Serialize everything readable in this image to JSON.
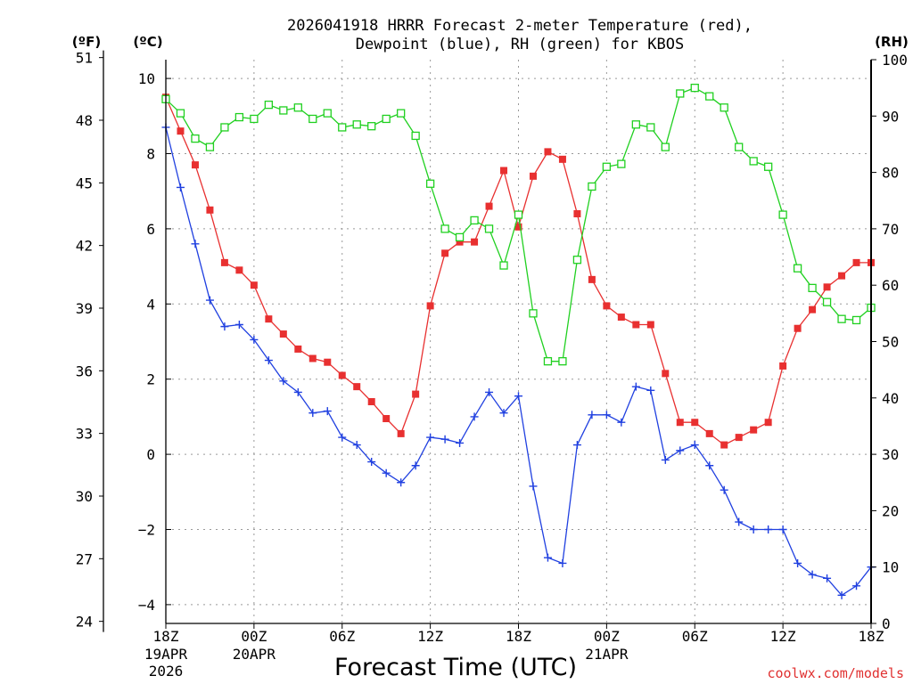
{
  "chart_data": {
    "type": "line",
    "title_line1": "2026041918 HRRR Forecast 2-meter Temperature (red),",
    "title_line2": "Dewpoint (blue), RH (green) for KBOS",
    "unit_f": "(ºF)",
    "unit_c": "(ºC)",
    "unit_rh": "(RH)",
    "xlabel": "Forecast Time (UTC)",
    "credit": "coolwx.com/models",
    "colors": {
      "temperature": "#e83030",
      "dewpoint": "#2040e0",
      "rh": "#20d020",
      "axis": "#000000",
      "grid": "#999999",
      "credit": "#e03030"
    },
    "x_axis": {
      "min_hour": 0,
      "max_hour": 48,
      "unit": "forecast hour"
    },
    "y_axis_c": {
      "min": -4.5,
      "max": 10.5,
      "ticks": [
        "10",
        "8",
        "6",
        "4",
        "2",
        "0",
        "−2",
        "−4"
      ],
      "tick_values": [
        10,
        8,
        6,
        4,
        2,
        0,
        -2,
        -4
      ]
    },
    "y_axis_f": {
      "ticks": [
        "51",
        "48",
        "45",
        "42",
        "39",
        "36",
        "33",
        "30",
        "27",
        "24"
      ],
      "tick_values": [
        51,
        48,
        45,
        42,
        39,
        36,
        33,
        30,
        27,
        24
      ]
    },
    "y_axis_rh": {
      "min": 0,
      "max": 100,
      "ticks": [
        "100",
        "90",
        "80",
        "70",
        "60",
        "50",
        "40",
        "30",
        "20",
        "10",
        "0"
      ],
      "tick_values": [
        100,
        90,
        80,
        70,
        60,
        50,
        40,
        30,
        20,
        10,
        0
      ]
    },
    "x_ticks": [
      {
        "hour": 0,
        "label": "18Z",
        "sub1": "19APR",
        "sub2": "2026"
      },
      {
        "hour": 6,
        "label": "00Z",
        "sub1": "20APR",
        "sub2": ""
      },
      {
        "hour": 12,
        "label": "06Z",
        "sub1": "",
        "sub2": ""
      },
      {
        "hour": 18,
        "label": "12Z",
        "sub1": "",
        "sub2": ""
      },
      {
        "hour": 24,
        "label": "18Z",
        "sub1": "",
        "sub2": ""
      },
      {
        "hour": 30,
        "label": "00Z",
        "sub1": "21APR",
        "sub2": ""
      },
      {
        "hour": 36,
        "label": "06Z",
        "sub1": "",
        "sub2": ""
      },
      {
        "hour": 42,
        "label": "12Z",
        "sub1": "",
        "sub2": ""
      },
      {
        "hour": 48,
        "label": "18Z",
        "sub1": "",
        "sub2": ""
      }
    ],
    "hours": [
      0,
      1,
      2,
      3,
      4,
      5,
      6,
      7,
      8,
      9,
      10,
      11,
      12,
      13,
      14,
      15,
      16,
      17,
      18,
      19,
      20,
      21,
      22,
      23,
      24,
      25,
      26,
      27,
      28,
      29,
      30,
      31,
      32,
      33,
      34,
      35,
      36,
      37,
      38,
      39,
      40,
      41,
      42,
      43,
      44,
      45,
      46,
      47,
      48
    ],
    "series": [
      {
        "name": "Temperature (C)",
        "key": "temperature",
        "axis": "c",
        "marker": "filled-square",
        "values": [
          9.5,
          8.6,
          7.7,
          6.5,
          5.1,
          4.9,
          4.5,
          3.6,
          3.2,
          2.8,
          2.55,
          2.45,
          2.1,
          1.8,
          1.4,
          0.95,
          0.55,
          1.6,
          3.95,
          5.35,
          5.65,
          5.65,
          6.6,
          7.55,
          6.05,
          7.4,
          8.05,
          7.85,
          6.4,
          4.65,
          3.95,
          3.65,
          3.45,
          3.45,
          2.15,
          0.85,
          0.85,
          0.55,
          0.25,
          0.45,
          0.65,
          0.85,
          2.35,
          3.35,
          3.85,
          4.45,
          4.75,
          5.1,
          5.1
        ]
      },
      {
        "name": "Dewpoint (C)",
        "key": "dewpoint",
        "axis": "c",
        "marker": "plus",
        "values": [
          8.7,
          7.1,
          5.6,
          4.1,
          3.4,
          3.45,
          3.05,
          2.5,
          1.95,
          1.65,
          1.1,
          1.15,
          0.45,
          0.25,
          -0.2,
          -0.5,
          -0.75,
          -0.3,
          0.45,
          0.4,
          0.3,
          1.0,
          1.65,
          1.1,
          1.55,
          -0.85,
          -2.75,
          -2.9,
          0.25,
          1.05,
          1.05,
          0.85,
          1.8,
          1.7,
          -0.15,
          0.1,
          0.25,
          -0.3,
          -0.95,
          -1.8,
          -2.0,
          -2.0,
          -2.0,
          -2.9,
          -3.2,
          -3.3,
          -3.75,
          -3.5,
          -3.0
        ]
      },
      {
        "name": "RH (%)",
        "key": "rh",
        "axis": "rh",
        "marker": "open-square",
        "values": [
          93,
          90.5,
          86,
          84.5,
          88,
          89.8,
          89.5,
          92,
          91,
          91.5,
          89.5,
          90.5,
          88,
          88.5,
          88.2,
          89.5,
          90.5,
          86.5,
          78,
          70,
          68.5,
          71.5,
          70,
          63.5,
          72.5,
          55,
          46.5,
          46.5,
          64.5,
          77.5,
          81,
          81.5,
          88.5,
          88,
          84.5,
          94,
          95,
          93.5,
          91.5,
          84.5,
          82,
          81,
          72.5,
          63,
          59.5,
          57,
          54,
          53.8,
          56
        ]
      }
    ]
  }
}
